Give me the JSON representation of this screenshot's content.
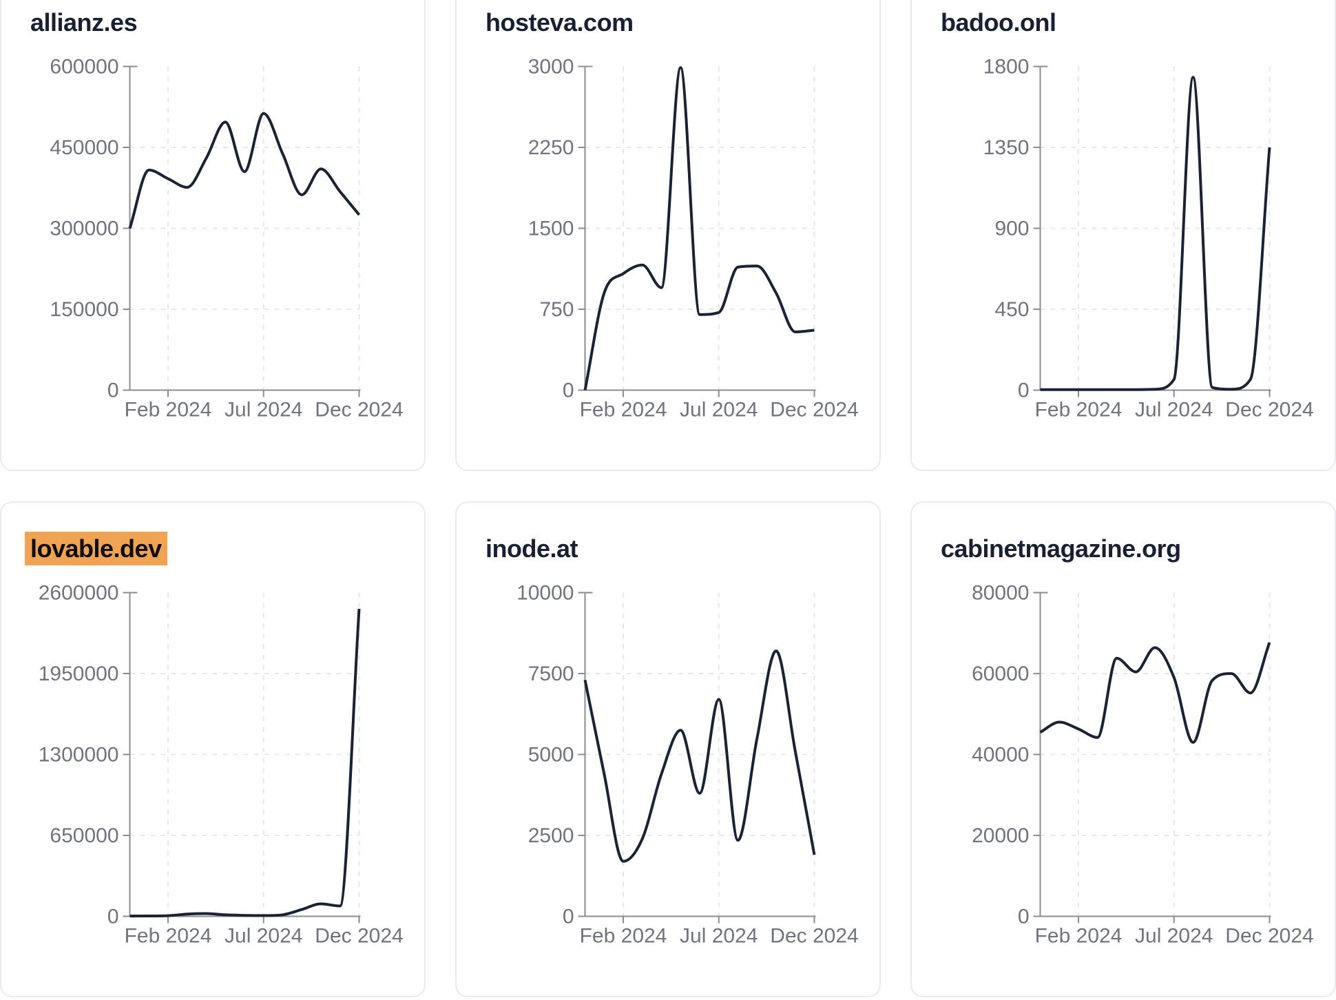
{
  "style": {
    "line_color": "#1c2134",
    "axis_color": "#898c90",
    "tick_label_color": "#707379",
    "grid_color": "#e6e7ea",
    "title_color": "#1a2032",
    "card_border_color": "#e7ebf1",
    "highlight_color": "#f0a353"
  },
  "chart_data": [
    {
      "type": "line",
      "title": "allianz.es",
      "title_highlighted": false,
      "x": [
        "Dec 2023",
        "Jan 2024",
        "Feb 2024",
        "Mar 2024",
        "Apr 2024",
        "May 2024",
        "Jun 2024",
        "Jul 2024",
        "Aug 2024",
        "Sep 2024",
        "Oct 2024",
        "Nov 2024",
        "Dec 2024"
      ],
      "values": [
        300000,
        408000,
        392000,
        376000,
        430000,
        497000,
        405000,
        513000,
        438000,
        362000,
        410000,
        368000,
        325000
      ],
      "y_ticks": [
        0,
        150000,
        300000,
        450000,
        600000
      ],
      "ylim": [
        0,
        600000
      ],
      "x_tick_labels": [
        "Feb 2024",
        "Jul 2024",
        "Dec 2024"
      ],
      "x_tick_positions": [
        2,
        7,
        12
      ],
      "grid": true,
      "legend": false
    },
    {
      "type": "line",
      "title": "hosteva.com",
      "title_highlighted": false,
      "x": [
        "Dec 2023",
        "Jan 2024",
        "Feb 2024",
        "Mar 2024",
        "Apr 2024",
        "May 2024",
        "Jun 2024",
        "Jul 2024",
        "Aug 2024",
        "Sep 2024",
        "Oct 2024",
        "Nov 2024",
        "Dec 2024"
      ],
      "values": [
        0,
        900,
        1080,
        1160,
        950,
        2990,
        700,
        720,
        1140,
        1150,
        900,
        540,
        555
      ],
      "y_ticks": [
        0,
        750,
        1500,
        2250,
        3000
      ],
      "ylim": [
        0,
        3000
      ],
      "x_tick_labels": [
        "Feb 2024",
        "Jul 2024",
        "Dec 2024"
      ],
      "x_tick_positions": [
        2,
        7,
        12
      ],
      "grid": true,
      "legend": false
    },
    {
      "type": "line",
      "title": "badoo.onl",
      "title_highlighted": false,
      "x": [
        "Dec 2023",
        "Jan 2024",
        "Feb 2024",
        "Mar 2024",
        "Apr 2024",
        "May 2024",
        "Jun 2024",
        "Jul 2024",
        "Aug 2024",
        "Sep 2024",
        "Oct 2024",
        "Nov 2024",
        "Dec 2024"
      ],
      "values": [
        3,
        3,
        3,
        3,
        3,
        3,
        5,
        60,
        1740,
        15,
        5,
        60,
        1350
      ],
      "y_ticks": [
        0,
        450,
        900,
        1350,
        1800
      ],
      "ylim": [
        0,
        1800
      ],
      "x_tick_labels": [
        "Feb 2024",
        "Jul 2024",
        "Dec 2024"
      ],
      "x_tick_positions": [
        2,
        7,
        12
      ],
      "grid": true,
      "legend": false
    },
    {
      "type": "line",
      "title": "lovable.dev",
      "title_highlighted": true,
      "x": [
        "Dec 2023",
        "Jan 2024",
        "Feb 2024",
        "Mar 2024",
        "Apr 2024",
        "May 2024",
        "Jun 2024",
        "Jul 2024",
        "Aug 2024",
        "Sep 2024",
        "Oct 2024",
        "Nov 2024",
        "Dec 2024"
      ],
      "values": [
        2000,
        3000,
        5000,
        18000,
        22000,
        12000,
        8000,
        6000,
        12000,
        55000,
        100000,
        83000,
        2470000
      ],
      "y_ticks": [
        0,
        650000,
        1300000,
        1950000,
        2600000
      ],
      "ylim": [
        0,
        2600000
      ],
      "x_tick_labels": [
        "Feb 2024",
        "Jul 2024",
        "Dec 2024"
      ],
      "x_tick_positions": [
        2,
        7,
        12
      ],
      "grid": true,
      "legend": false
    },
    {
      "type": "line",
      "title": "inode.at",
      "title_highlighted": false,
      "x": [
        "Dec 2023",
        "Jan 2024",
        "Feb 2024",
        "Mar 2024",
        "Apr 2024",
        "May 2024",
        "Jun 2024",
        "Jul 2024",
        "Aug 2024",
        "Sep 2024",
        "Oct 2024",
        "Nov 2024",
        "Dec 2024"
      ],
      "values": [
        7300,
        4400,
        1700,
        2400,
        4400,
        5750,
        3800,
        6700,
        2350,
        5500,
        8200,
        5100,
        1900
      ],
      "y_ticks": [
        0,
        2500,
        5000,
        7500,
        10000
      ],
      "ylim": [
        0,
        10000
      ],
      "x_tick_labels": [
        "Feb 2024",
        "Jul 2024",
        "Dec 2024"
      ],
      "x_tick_positions": [
        2,
        7,
        12
      ],
      "grid": true,
      "legend": false
    },
    {
      "type": "line",
      "title": "cabinetmagazine.org",
      "title_highlighted": false,
      "x": [
        "Dec 2023",
        "Jan 2024",
        "Feb 2024",
        "Mar 2024",
        "Apr 2024",
        "May 2024",
        "Jun 2024",
        "Jul 2024",
        "Aug 2024",
        "Sep 2024",
        "Oct 2024",
        "Nov 2024",
        "Dec 2024"
      ],
      "values": [
        45500,
        48000,
        46300,
        44200,
        63800,
        60400,
        66400,
        59000,
        43000,
        58300,
        60000,
        55200,
        67700
      ],
      "y_ticks": [
        0,
        20000,
        40000,
        60000,
        80000
      ],
      "ylim": [
        0,
        80000
      ],
      "x_tick_labels": [
        "Feb 2024",
        "Jul 2024",
        "Dec 2024"
      ],
      "x_tick_positions": [
        2,
        7,
        12
      ],
      "grid": true,
      "legend": false
    }
  ]
}
